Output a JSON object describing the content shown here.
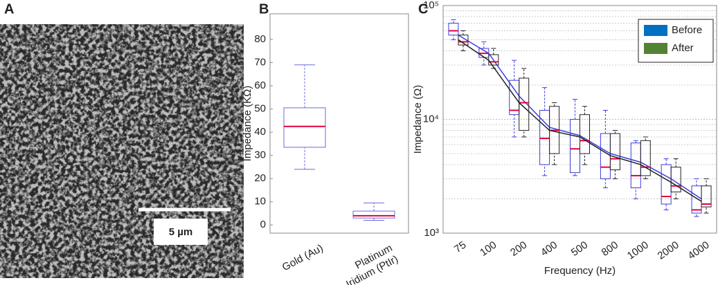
{
  "panels": {
    "a": {
      "label": "A",
      "scale_bar": "5 µm"
    }
  },
  "chart_data": [
    {
      "type": "box",
      "label": "B",
      "ylabel": "Impedance (KΩ)",
      "categories": [
        "Gold (Au)",
        [
          "Platinum",
          "Iridium (PtIr)"
        ]
      ],
      "min": [
        24,
        2
      ],
      "q1": [
        33.5,
        3
      ],
      "median": [
        42.5,
        4
      ],
      "q3": [
        50.5,
        6
      ],
      "max": [
        69,
        9.5
      ],
      "box_color": "#6a6ae0",
      "median_color": "#e0003c",
      "ylim": [
        -3.5,
        91
      ],
      "yticks": [
        0,
        10,
        20,
        30,
        40,
        50,
        60,
        70,
        80
      ]
    },
    {
      "type": "box",
      "label": "C",
      "ylabel": "Impedance (Ω)",
      "xlabel": "Frequency (Hz)",
      "categories": [
        "75",
        "100",
        "200",
        "400",
        "500",
        "800",
        "1000",
        "2000",
        "4000"
      ],
      "log_y": true,
      "minor_grid": true,
      "legend": "top-right",
      "median_color": "#e0003c",
      "ylim": [
        1000,
        100000
      ],
      "yticks": [
        {
          "value": 1000,
          "label": "10³"
        },
        {
          "value": 10000,
          "label": "10⁴"
        },
        {
          "value": 100000,
          "label": "10⁵"
        }
      ],
      "series": [
        {
          "name": "Before",
          "color": "#0070c0",
          "box_color": "#3b3bdb",
          "min": [
            50000,
            30000,
            7000,
            3200,
            3200,
            2500,
            2000,
            1600,
            1400
          ],
          "q1": [
            55000,
            35000,
            11000,
            4000,
            3400,
            3000,
            2500,
            1800,
            1500
          ],
          "median": [
            60000,
            38000,
            12000,
            6800,
            5500,
            3800,
            3200,
            2100,
            1600
          ],
          "q3": [
            70000,
            42000,
            22000,
            12000,
            10000,
            7500,
            6200,
            4000,
            2600
          ],
          "max": [
            75000,
            48000,
            33000,
            19000,
            15000,
            12000,
            6500,
            4500,
            3000
          ],
          "means": [
            55000,
            38000,
            16000,
            8500,
            7200,
            5000,
            4200,
            3000,
            2000
          ]
        },
        {
          "name": "After",
          "color": "#548235",
          "box_color": "#222222",
          "min": [
            40000,
            28000,
            7000,
            4000,
            4000,
            3000,
            3000,
            2000,
            1500
          ],
          "q1": [
            45000,
            30000,
            8000,
            5000,
            5000,
            3600,
            3200,
            2300,
            1700
          ],
          "median": [
            48000,
            32000,
            14000,
            8000,
            6500,
            4500,
            3800,
            2600,
            1800
          ],
          "q3": [
            55000,
            37000,
            23000,
            13000,
            11000,
            7500,
            6500,
            3800,
            2600
          ],
          "max": [
            60000,
            42000,
            28000,
            14000,
            13000,
            8000,
            7000,
            4500,
            3000
          ],
          "means": [
            50000,
            33000,
            14000,
            8000,
            7000,
            4800,
            4000,
            2800,
            1900
          ]
        }
      ]
    }
  ]
}
